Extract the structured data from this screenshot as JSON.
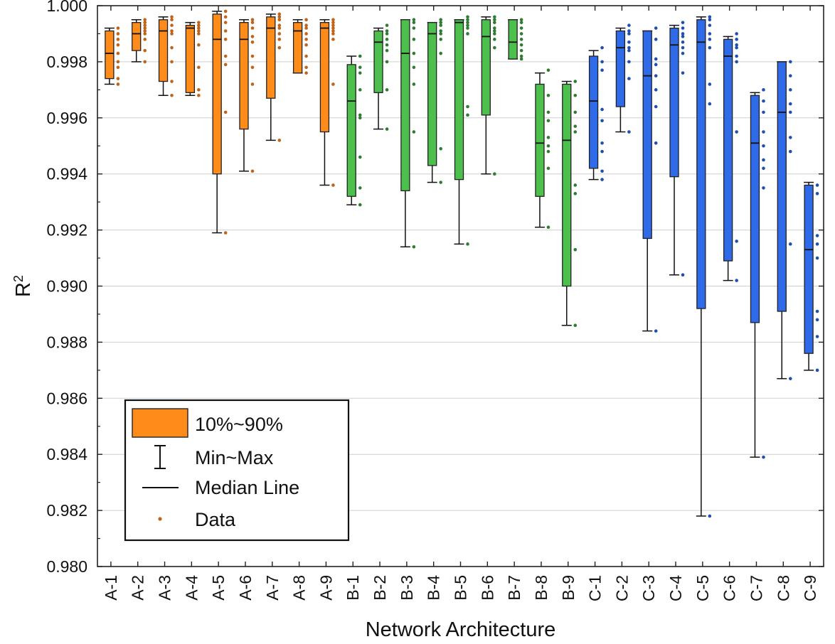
{
  "chart_data": {
    "type": "box",
    "title": "",
    "xlabel": "Network Architecture",
    "ylabel": "R",
    "ylabel_superscript": "2",
    "ylim": [
      0.98,
      1.0
    ],
    "yticks": [
      "0.980",
      "0.982",
      "0.984",
      "0.986",
      "0.988",
      "0.990",
      "0.992",
      "0.994",
      "0.996",
      "0.998",
      "1.000"
    ],
    "grid": true,
    "legend": {
      "position": "bottom-left",
      "items": [
        {
          "label": "10%~90%",
          "kind": "box"
        },
        {
          "label": "Min~Max",
          "kind": "whisker"
        },
        {
          "label": "Median Line",
          "kind": "median"
        },
        {
          "label": "Data",
          "kind": "point"
        }
      ]
    },
    "colors": {
      "A": "#ff8c1a",
      "B": "#4cbf4c",
      "C": "#2f6ae8",
      "A_dots": "#c0641a",
      "B_dots": "#2e7d32",
      "C_dots": "#1f4fb0"
    },
    "series": [
      {
        "name": "A-1",
        "group": "A",
        "min": 0.9972,
        "q10": 0.9974,
        "median": 0.9983,
        "q90": 0.9991,
        "max": 0.9992,
        "points": [
          0.9972,
          0.9974,
          0.9978,
          0.998,
          0.9983,
          0.9986,
          0.9988,
          0.999,
          0.9992
        ]
      },
      {
        "name": "A-2",
        "group": "A",
        "min": 0.998,
        "q10": 0.9984,
        "median": 0.999,
        "q90": 0.9994,
        "max": 0.9995,
        "points": [
          0.998,
          0.9984,
          0.9988,
          0.999,
          0.9991,
          0.9992,
          0.9993,
          0.9994,
          0.9995
        ]
      },
      {
        "name": "A-3",
        "group": "A",
        "min": 0.9968,
        "q10": 0.9973,
        "median": 0.9991,
        "q90": 0.9995,
        "max": 0.9996,
        "points": [
          0.9968,
          0.9973,
          0.998,
          0.9985,
          0.999,
          0.9991,
          0.9993,
          0.9995,
          0.9996
        ]
      },
      {
        "name": "A-4",
        "group": "A",
        "min": 0.9968,
        "q10": 0.9969,
        "median": 0.9992,
        "q90": 0.9993,
        "max": 0.9994,
        "points": [
          0.9968,
          0.997,
          0.9978,
          0.9986,
          0.999,
          0.9991,
          0.9992,
          0.9993,
          0.9994
        ]
      },
      {
        "name": "A-5",
        "group": "A",
        "min": 0.9919,
        "q10": 0.994,
        "median": 0.9988,
        "q90": 0.9997,
        "max": 0.9998,
        "points": [
          0.9919,
          0.9962,
          0.9979,
          0.9982,
          0.9988,
          0.9991,
          0.9994,
          0.9996,
          0.9998
        ]
      },
      {
        "name": "A-6",
        "group": "A",
        "min": 0.9941,
        "q10": 0.9956,
        "median": 0.9988,
        "q90": 0.9994,
        "max": 0.9995,
        "points": [
          0.9941,
          0.9972,
          0.9978,
          0.9982,
          0.9987,
          0.9989,
          0.9992,
          0.9994,
          0.9995
        ]
      },
      {
        "name": "A-7",
        "group": "A",
        "min": 0.9952,
        "q10": 0.9967,
        "median": 0.9992,
        "q90": 0.9996,
        "max": 0.9997,
        "points": [
          0.9952,
          0.9985,
          0.9988,
          0.999,
          0.9992,
          0.9993,
          0.9995,
          0.9996,
          0.9997
        ]
      },
      {
        "name": "A-8",
        "group": "A",
        "min": 0.9976,
        "q10": 0.9976,
        "median": 0.9991,
        "q90": 0.9994,
        "max": 0.9995,
        "points": [
          0.9976,
          0.9978,
          0.9982,
          0.9986,
          0.9988,
          0.999,
          0.9992,
          0.9993,
          0.9995
        ]
      },
      {
        "name": "A-9",
        "group": "A",
        "min": 0.9936,
        "q10": 0.9955,
        "median": 0.9992,
        "q90": 0.9994,
        "max": 0.9995,
        "points": [
          0.9936,
          0.9972,
          0.9988,
          0.999,
          0.9991,
          0.9992,
          0.9993,
          0.9994,
          0.9995
        ]
      },
      {
        "name": "B-1",
        "group": "B",
        "min": 0.9929,
        "q10": 0.9932,
        "median": 0.9966,
        "q90": 0.9979,
        "max": 0.9982,
        "points": [
          0.9929,
          0.9935,
          0.9946,
          0.996,
          0.9961,
          0.997,
          0.9976,
          0.9978,
          0.9982
        ]
      },
      {
        "name": "B-2",
        "group": "B",
        "min": 0.9956,
        "q10": 0.9969,
        "median": 0.9987,
        "q90": 0.9991,
        "max": 0.9992,
        "points": [
          0.9956,
          0.997,
          0.998,
          0.9984,
          0.9986,
          0.9988,
          0.999,
          0.9991,
          0.9993
        ]
      },
      {
        "name": "B-3",
        "group": "B",
        "min": 0.9914,
        "q10": 0.9934,
        "median": 0.9983,
        "q90": 0.9995,
        "max": 0.9995,
        "points": [
          0.9914,
          0.9955,
          0.9972,
          0.9978,
          0.9983,
          0.9988,
          0.9992,
          0.9994,
          0.9995
        ]
      },
      {
        "name": "B-4",
        "group": "B",
        "min": 0.9937,
        "q10": 0.9943,
        "median": 0.999,
        "q90": 0.9994,
        "max": 0.9994,
        "points": [
          0.9937,
          0.9949,
          0.9983,
          0.9988,
          0.999,
          0.9991,
          0.9993,
          0.9994,
          0.9995
        ]
      },
      {
        "name": "B-5",
        "group": "B",
        "min": 0.9915,
        "q10": 0.9938,
        "median": 0.9994,
        "q90": 0.9995,
        "max": 0.9995,
        "points": [
          0.9915,
          0.9961,
          0.9964,
          0.999,
          0.9992,
          0.9993,
          0.9994,
          0.9995,
          0.9996
        ]
      },
      {
        "name": "B-6",
        "group": "B",
        "min": 0.994,
        "q10": 0.9961,
        "median": 0.9989,
        "q90": 0.9995,
        "max": 0.9996,
        "points": [
          0.994,
          0.9985,
          0.9988,
          0.999,
          0.9991,
          0.9992,
          0.9994,
          0.9995,
          0.9996
        ]
      },
      {
        "name": "B-7",
        "group": "B",
        "min": 0.9981,
        "q10": 0.9981,
        "median": 0.9987,
        "q90": 0.9995,
        "max": 0.9995,
        "points": [
          0.9981,
          0.9982,
          0.9984,
          0.9986,
          0.9988,
          0.999,
          0.9992,
          0.9994,
          0.9995
        ]
      },
      {
        "name": "B-8",
        "group": "B",
        "min": 0.9921,
        "q10": 0.9932,
        "median": 0.9951,
        "q90": 0.9972,
        "max": 0.9976,
        "points": [
          0.9921,
          0.9942,
          0.9948,
          0.995,
          0.9953,
          0.9959,
          0.9962,
          0.9968,
          0.9977
        ]
      },
      {
        "name": "B-9",
        "group": "B",
        "min": 0.9886,
        "q10": 0.99,
        "median": 0.9952,
        "q90": 0.9972,
        "max": 0.9973,
        "points": [
          0.9886,
          0.9913,
          0.9933,
          0.9936,
          0.9955,
          0.9957,
          0.9962,
          0.9968,
          0.9973
        ]
      },
      {
        "name": "C-1",
        "group": "C",
        "min": 0.9938,
        "q10": 0.9942,
        "median": 0.9966,
        "q90": 0.9982,
        "max": 0.9984,
        "points": [
          0.9938,
          0.9941,
          0.9948,
          0.9951,
          0.9959,
          0.9963,
          0.9977,
          0.998,
          0.9985
        ]
      },
      {
        "name": "C-2",
        "group": "C",
        "min": 0.9955,
        "q10": 0.9964,
        "median": 0.9985,
        "q90": 0.9991,
        "max": 0.9992,
        "points": [
          0.9955,
          0.9974,
          0.998,
          0.9984,
          0.9985,
          0.9987,
          0.999,
          0.9991,
          0.9993
        ]
      },
      {
        "name": "C-3",
        "group": "C",
        "min": 0.9884,
        "q10": 0.9917,
        "median": 0.9975,
        "q90": 0.9991,
        "max": 0.9991,
        "points": [
          0.9884,
          0.9951,
          0.9964,
          0.997,
          0.9975,
          0.9979,
          0.9981,
          0.9988,
          0.9992
        ]
      },
      {
        "name": "C-4",
        "group": "C",
        "min": 0.9904,
        "q10": 0.9939,
        "median": 0.9986,
        "q90": 0.9992,
        "max": 0.9993,
        "points": [
          0.9904,
          0.9976,
          0.9983,
          0.9985,
          0.9987,
          0.9989,
          0.999,
          0.9992,
          0.9994
        ]
      },
      {
        "name": "C-5",
        "group": "C",
        "min": 0.9818,
        "q10": 0.9892,
        "median": 0.9987,
        "q90": 0.9995,
        "max": 0.9996,
        "points": [
          0.9818,
          0.9965,
          0.9972,
          0.9985,
          0.9988,
          0.999,
          0.9993,
          0.9995,
          0.9996
        ]
      },
      {
        "name": "C-6",
        "group": "C",
        "min": 0.9902,
        "q10": 0.9909,
        "median": 0.9982,
        "q90": 0.9988,
        "max": 0.9989,
        "points": [
          0.9902,
          0.9916,
          0.9955,
          0.998,
          0.9982,
          0.9985,
          0.9986,
          0.9988,
          0.999
        ]
      },
      {
        "name": "C-7",
        "group": "C",
        "min": 0.9839,
        "q10": 0.9887,
        "median": 0.9951,
        "q90": 0.9968,
        "max": 0.9969,
        "points": [
          0.9839,
          0.9935,
          0.9942,
          0.9945,
          0.995,
          0.9955,
          0.9962,
          0.9966,
          0.997
        ]
      },
      {
        "name": "C-8",
        "group": "C",
        "min": 0.9867,
        "q10": 0.9891,
        "median": 0.9962,
        "q90": 0.998,
        "max": 0.998,
        "points": [
          0.9867,
          0.9915,
          0.9948,
          0.9953,
          0.9962,
          0.9965,
          0.997,
          0.9975,
          0.998
        ]
      },
      {
        "name": "C-9",
        "group": "C",
        "min": 0.987,
        "q10": 0.9876,
        "median": 0.9913,
        "q90": 0.9936,
        "max": 0.9937,
        "points": [
          0.987,
          0.9882,
          0.9888,
          0.9891,
          0.991,
          0.9915,
          0.9918,
          0.9933,
          0.9936
        ]
      }
    ]
  }
}
